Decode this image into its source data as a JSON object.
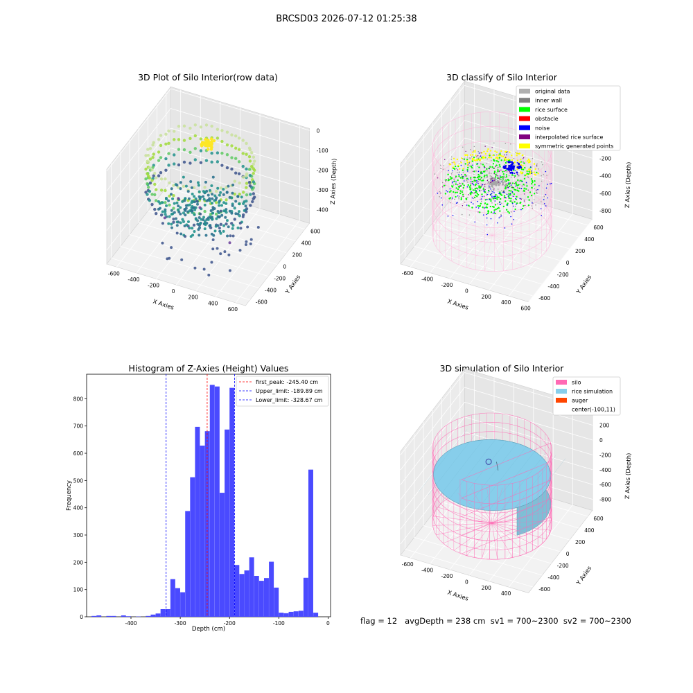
{
  "figure": {
    "suptitle": "BRCSD03 2026-07-12 01:25:38",
    "footer": "flag = 12   avgDepth = 238 cm  sv1 = 700~2300  sv2 = 700~2300"
  },
  "panels": {
    "raw": {
      "title": "3D Plot of Silo Interior(row data)",
      "x_axis": {
        "label": "X Axies",
        "ticks": [
          -600,
          -400,
          -200,
          0,
          200,
          400,
          600
        ]
      },
      "y_axis": {
        "label": "Y Axies",
        "ticks": [
          -600,
          -400,
          -200,
          0,
          200,
          400,
          600
        ]
      },
      "z_axis": {
        "label": "Z Axies (Depth)",
        "ticks": [
          0,
          -100,
          -200,
          -300,
          -400
        ]
      }
    },
    "classify": {
      "title": "3D classify of Silo Interior",
      "x_axis": {
        "label": "X Axies",
        "ticks": [
          -600,
          -400,
          -200,
          0,
          200,
          400,
          600
        ]
      },
      "y_axis": {
        "label": "Y Axies",
        "ticks": [
          -600,
          -400,
          -200,
          0,
          200,
          400,
          600
        ]
      },
      "z_axis": {
        "label": "Z Axies (Depth)",
        "ticks": [
          200,
          0,
          -200,
          -400,
          -600,
          -800
        ]
      },
      "legend": [
        {
          "label": "original data",
          "color": "#b0b0b0"
        },
        {
          "label": "inner wall",
          "color": "#808080"
        },
        {
          "label": "rice surface",
          "color": "#00ff00"
        },
        {
          "label": "obstacle",
          "color": "#ff0000"
        },
        {
          "label": "noise",
          "color": "#0000ff"
        },
        {
          "label": "interpolated rice surface",
          "color": "#800080"
        },
        {
          "label": "symmetric generated points",
          "color": "#ffff00"
        }
      ]
    },
    "simulation": {
      "title": "3D simulation of Silo Interior",
      "x_axis": {
        "label": "X Axies",
        "ticks": [
          -600,
          -400,
          -200,
          0,
          200,
          400
        ]
      },
      "y_axis": {
        "label": "Y Axies",
        "ticks": [
          -600,
          -400,
          -200,
          0,
          200,
          400,
          600
        ]
      },
      "z_axis": {
        "label": "Z Axies (Depth)",
        "ticks": [
          400,
          200,
          0,
          -200,
          -400,
          -600,
          -800
        ]
      },
      "legend": [
        {
          "label": "silo",
          "color": "#ff69b4"
        },
        {
          "label": "rice simulation",
          "color": "#87ceeb"
        },
        {
          "label": "auger",
          "color": "#ff4500"
        },
        {
          "label": "center(-100,11)",
          "color": "none"
        }
      ]
    }
  },
  "chart_data": {
    "type": "bar",
    "title": "Histogram of Z-Axies (Height) Values",
    "xlabel": "Depth (cm)",
    "ylabel": "Frequency",
    "xlim": [
      -490,
      5
    ],
    "ylim": [
      0,
      890
    ],
    "xticks": [
      -400,
      -300,
      -200,
      -100,
      0
    ],
    "yticks": [
      0,
      100,
      200,
      300,
      400,
      500,
      600,
      700,
      800
    ],
    "bar_color": "#4a4aff",
    "bin_width": 9.8,
    "bins": [
      {
        "x": -480,
        "count": 3
      },
      {
        "x": -470,
        "count": 5
      },
      {
        "x": -450,
        "count": 3
      },
      {
        "x": -440,
        "count": 3
      },
      {
        "x": -420,
        "count": 5
      },
      {
        "x": -410,
        "count": 2
      },
      {
        "x": -390,
        "count": 1
      },
      {
        "x": -370,
        "count": 3
      },
      {
        "x": -360,
        "count": 8
      },
      {
        "x": -350,
        "count": 12
      },
      {
        "x": -340,
        "count": 28
      },
      {
        "x": -330,
        "count": 28
      },
      {
        "x": -320,
        "count": 138
      },
      {
        "x": -310,
        "count": 105
      },
      {
        "x": -300,
        "count": 90
      },
      {
        "x": -290,
        "count": 388
      },
      {
        "x": -280,
        "count": 512
      },
      {
        "x": -270,
        "count": 697
      },
      {
        "x": -260,
        "count": 628
      },
      {
        "x": -250,
        "count": 681
      },
      {
        "x": -240,
        "count": 851
      },
      {
        "x": -230,
        "count": 845
      },
      {
        "x": -220,
        "count": 455
      },
      {
        "x": -210,
        "count": 687
      },
      {
        "x": -200,
        "count": 840
      },
      {
        "x": -190,
        "count": 190
      },
      {
        "x": -180,
        "count": 157
      },
      {
        "x": -170,
        "count": 170
      },
      {
        "x": -160,
        "count": 218
      },
      {
        "x": -150,
        "count": 150
      },
      {
        "x": -140,
        "count": 132
      },
      {
        "x": -130,
        "count": 142
      },
      {
        "x": -120,
        "count": 202
      },
      {
        "x": -110,
        "count": 107
      },
      {
        "x": -100,
        "count": 15
      },
      {
        "x": -90,
        "count": 13
      },
      {
        "x": -80,
        "count": 18
      },
      {
        "x": -70,
        "count": 20
      },
      {
        "x": -60,
        "count": 22
      },
      {
        "x": -50,
        "count": 143
      },
      {
        "x": -40,
        "count": 540
      },
      {
        "x": -30,
        "count": 15
      }
    ],
    "lines": [
      {
        "label": "first_peak: -245.40 cm",
        "x": -245.4,
        "color": "#ff0000"
      },
      {
        "label": "Upper_limit: -189.89 cm",
        "x": -189.89,
        "color": "#0000ff"
      },
      {
        "label": "Lower_limit: -328.67 cm",
        "x": -328.67,
        "color": "#0000ff"
      }
    ]
  }
}
